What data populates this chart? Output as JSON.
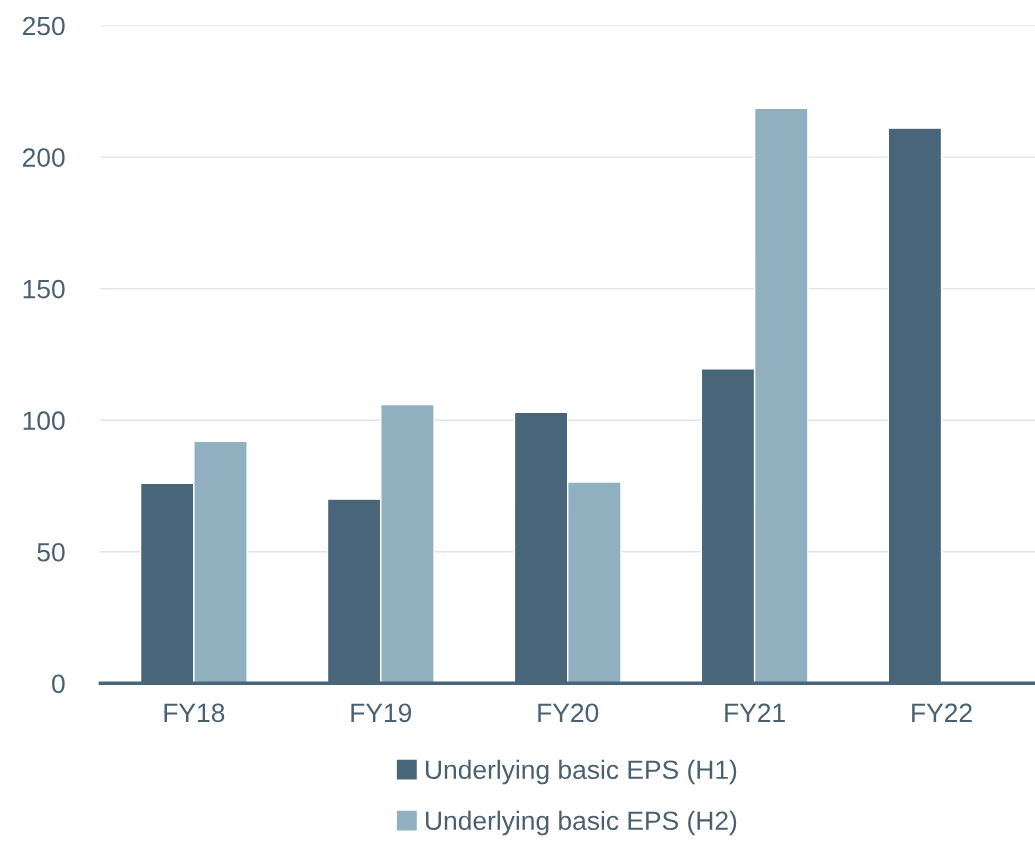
{
  "chart_data": {
    "type": "bar",
    "categories": [
      "FY18",
      "FY19",
      "FY20",
      "FY21",
      "FY22"
    ],
    "series": [
      {
        "name": "Underlying basic EPS (H1)",
        "color": "#48657a",
        "values": [
          76,
          70,
          103,
          119.5,
          211
        ]
      },
      {
        "name": "Underlying basic EPS (H2)",
        "color": "#91b0bf",
        "values": [
          92,
          106,
          76.5,
          218.5,
          null
        ]
      }
    ],
    "ylim": [
      0,
      250
    ],
    "yticks": [
      0,
      50,
      100,
      150,
      200,
      250
    ],
    "grid": "y",
    "legend": "bottom"
  }
}
